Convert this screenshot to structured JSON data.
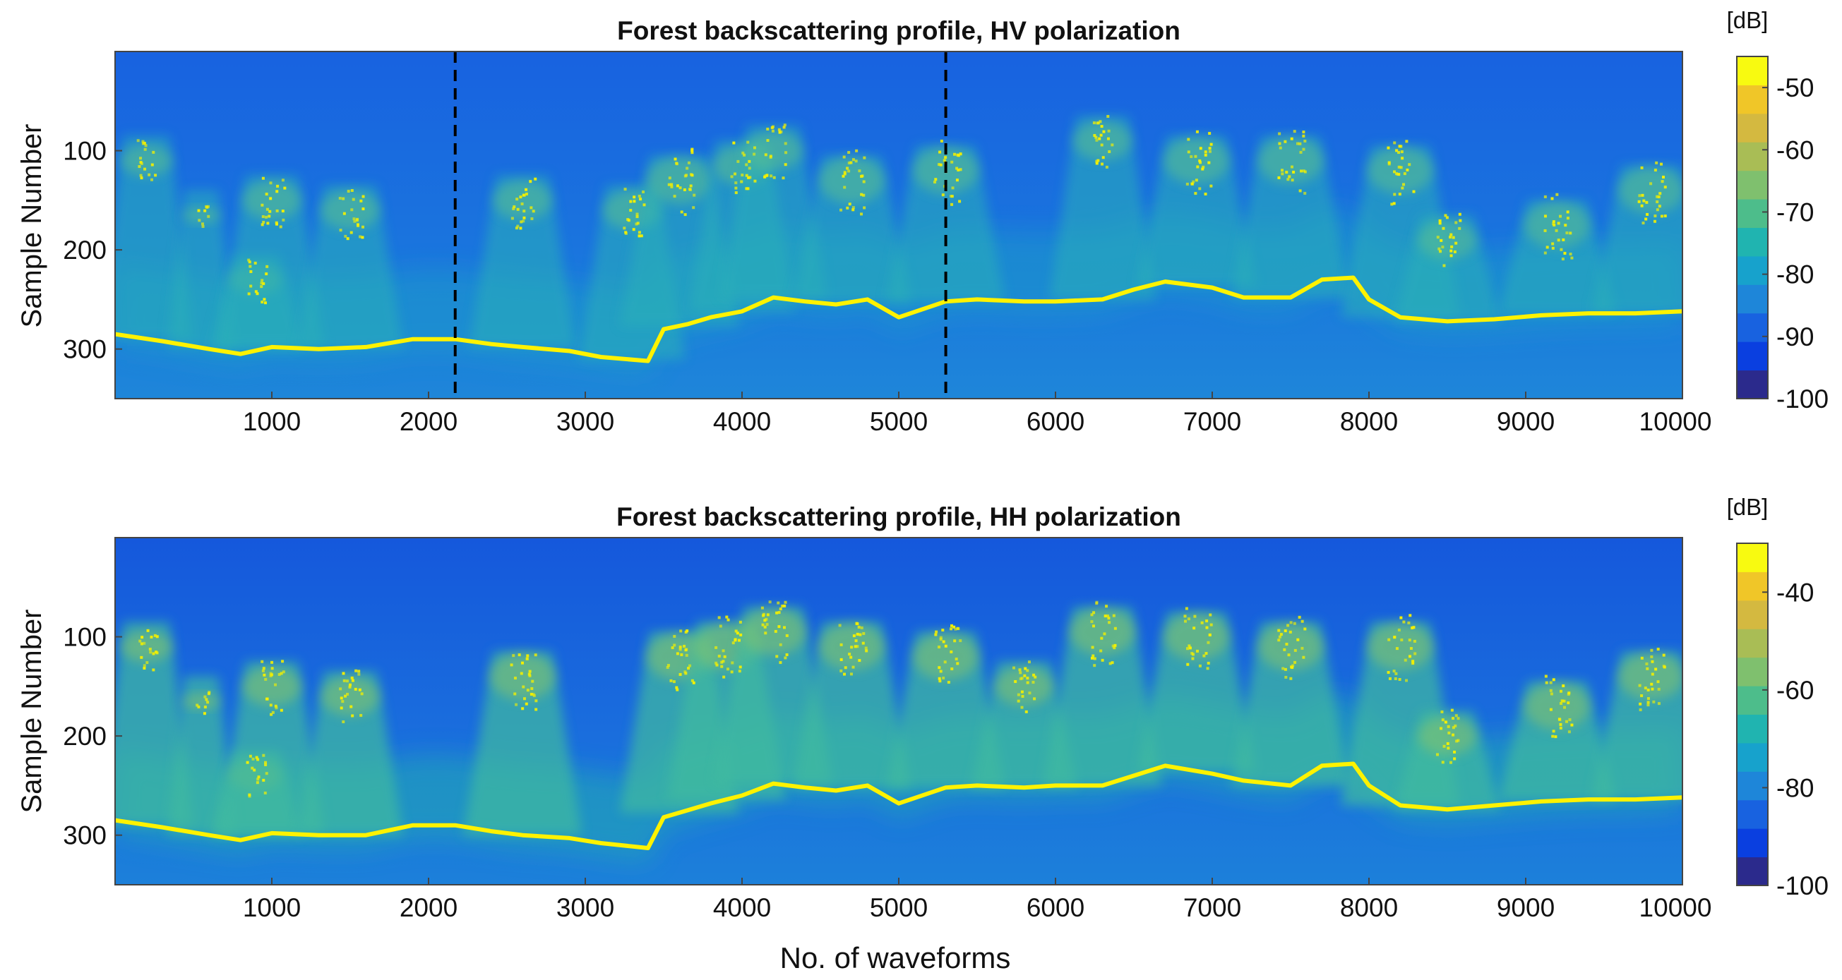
{
  "figure": {
    "xlabel": "No. of waveforms",
    "colors": {
      "frame": "#444444",
      "text": "#111111",
      "ground_line": "#fff200",
      "scatter_yellow": "#f4f000",
      "marker_line": "#000000"
    }
  },
  "chart_data": [
    {
      "type": "heatmap",
      "title": "Forest backscattering profile, HV polarization",
      "xlabel": "",
      "ylabel": "Sample Number",
      "xlim": [
        0,
        10000
      ],
      "ylim": [
        350,
        0
      ],
      "xticks": [
        1000,
        2000,
        3000,
        4000,
        5000,
        6000,
        7000,
        8000,
        9000,
        10000
      ],
      "xtick_labels": [
        "1000",
        "2000",
        "3000",
        "4000",
        "5000",
        "6000",
        "7000",
        "8000",
        "9000",
        "10000"
      ],
      "yticks": [
        100,
        200,
        300
      ],
      "ytick_labels": [
        "100",
        "200",
        "300"
      ],
      "vlines": [
        2170,
        5300
      ],
      "colorbar": {
        "label": "[dB]",
        "range": [
          -100,
          -45
        ],
        "ticks": [
          -50,
          -60,
          -70,
          -80,
          -90,
          -100
        ],
        "tick_labels": [
          "-50",
          "-60",
          "-70",
          "-80",
          "-90",
          "-100"
        ],
        "colors": [
          "#2b2a8c",
          "#0a3fe0",
          "#1862e0",
          "#1e86d9",
          "#17a2cc",
          "#20b4b0",
          "#4dbd8b",
          "#7fc06e",
          "#a9bd55",
          "#d4b940",
          "#f0c628",
          "#f8fa10"
        ]
      },
      "ground_profile": {
        "x": [
          0,
          300,
          600,
          800,
          1000,
          1300,
          1600,
          1900,
          2170,
          2400,
          2600,
          2900,
          3100,
          3400,
          3500,
          3650,
          3800,
          4000,
          4200,
          4400,
          4600,
          4800,
          5000,
          5300,
          5500,
          5800,
          6000,
          6300,
          6500,
          6700,
          7000,
          7200,
          7500,
          7700,
          7900,
          8000,
          8200,
          8500,
          8800,
          9100,
          9400,
          9700,
          10000
        ],
        "y": [
          285,
          292,
          300,
          305,
          298,
          300,
          298,
          290,
          290,
          295,
          298,
          302,
          308,
          312,
          280,
          275,
          268,
          262,
          248,
          252,
          255,
          250,
          268,
          252,
          250,
          252,
          252,
          250,
          240,
          232,
          238,
          248,
          248,
          230,
          228,
          250,
          268,
          272,
          270,
          266,
          264,
          264,
          262
        ]
      },
      "vegetation_clusters": [
        {
          "x": 200,
          "y": 110,
          "size": 40
        },
        {
          "x": 550,
          "y": 165,
          "size": 20
        },
        {
          "x": 900,
          "y": 230,
          "size": 40
        },
        {
          "x": 1000,
          "y": 150,
          "size": 50
        },
        {
          "x": 1500,
          "y": 160,
          "size": 50
        },
        {
          "x": 2600,
          "y": 150,
          "size": 50
        },
        {
          "x": 3300,
          "y": 160,
          "size": 50
        },
        {
          "x": 3600,
          "y": 130,
          "size": 60
        },
        {
          "x": 4000,
          "y": 115,
          "size": 50
        },
        {
          "x": 4200,
          "y": 100,
          "size": 50
        },
        {
          "x": 4700,
          "y": 130,
          "size": 60
        },
        {
          "x": 5300,
          "y": 120,
          "size": 60
        },
        {
          "x": 6300,
          "y": 90,
          "size": 50
        },
        {
          "x": 6900,
          "y": 110,
          "size": 60
        },
        {
          "x": 7500,
          "y": 110,
          "size": 60
        },
        {
          "x": 8200,
          "y": 120,
          "size": 60
        },
        {
          "x": 8500,
          "y": 190,
          "size": 50
        },
        {
          "x": 9200,
          "y": 175,
          "size": 60
        },
        {
          "x": 9800,
          "y": 140,
          "size": 60
        }
      ]
    },
    {
      "type": "heatmap",
      "title": "Forest backscattering profile, HH polarization",
      "xlabel": "No. of waveforms",
      "ylabel": "Sample Number",
      "xlim": [
        0,
        10000
      ],
      "ylim": [
        350,
        0
      ],
      "xticks": [
        1000,
        2000,
        3000,
        4000,
        5000,
        6000,
        7000,
        8000,
        9000,
        10000
      ],
      "xtick_labels": [
        "1000",
        "2000",
        "3000",
        "4000",
        "5000",
        "6000",
        "7000",
        "8000",
        "9000",
        "10000"
      ],
      "yticks": [
        100,
        200,
        300
      ],
      "ytick_labels": [
        "100",
        "200",
        "300"
      ],
      "vlines": [],
      "colorbar": {
        "label": "[dB]",
        "range": [
          -100,
          -30
        ],
        "ticks": [
          -40,
          -60,
          -80,
          -100
        ],
        "tick_labels": [
          "-40",
          "-60",
          "-80",
          "-100"
        ],
        "colors": [
          "#2b2a8c",
          "#0a3fe0",
          "#1862e0",
          "#1e86d9",
          "#17a2cc",
          "#20b4b0",
          "#4dbd8b",
          "#7fc06e",
          "#a9bd55",
          "#d4b940",
          "#f0c628",
          "#f8fa10"
        ]
      },
      "ground_profile": {
        "x": [
          0,
          300,
          600,
          800,
          1000,
          1300,
          1600,
          1900,
          2170,
          2400,
          2600,
          2900,
          3100,
          3400,
          3500,
          3650,
          3800,
          4000,
          4200,
          4400,
          4600,
          4800,
          5000,
          5300,
          5500,
          5800,
          6000,
          6300,
          6500,
          6700,
          7000,
          7200,
          7500,
          7700,
          7900,
          8000,
          8200,
          8500,
          8800,
          9100,
          9400,
          9700,
          10000
        ],
        "y": [
          285,
          292,
          300,
          305,
          298,
          300,
          300,
          290,
          290,
          296,
          300,
          303,
          308,
          313,
          282,
          275,
          268,
          260,
          248,
          252,
          255,
          250,
          268,
          252,
          250,
          252,
          250,
          250,
          240,
          230,
          238,
          245,
          250,
          230,
          228,
          250,
          270,
          274,
          270,
          266,
          264,
          264,
          262
        ]
      },
      "vegetation_clusters": [
        {
          "x": 200,
          "y": 110,
          "size": 40
        },
        {
          "x": 550,
          "y": 165,
          "size": 20
        },
        {
          "x": 900,
          "y": 240,
          "size": 40
        },
        {
          "x": 1000,
          "y": 150,
          "size": 50
        },
        {
          "x": 1500,
          "y": 160,
          "size": 50
        },
        {
          "x": 2600,
          "y": 140,
          "size": 60
        },
        {
          "x": 3600,
          "y": 120,
          "size": 60
        },
        {
          "x": 3900,
          "y": 110,
          "size": 60
        },
        {
          "x": 4200,
          "y": 95,
          "size": 60
        },
        {
          "x": 4700,
          "y": 110,
          "size": 60
        },
        {
          "x": 5300,
          "y": 120,
          "size": 60
        },
        {
          "x": 5800,
          "y": 150,
          "size": 50
        },
        {
          "x": 6300,
          "y": 95,
          "size": 60
        },
        {
          "x": 6900,
          "y": 100,
          "size": 60
        },
        {
          "x": 7500,
          "y": 110,
          "size": 60
        },
        {
          "x": 8200,
          "y": 110,
          "size": 60
        },
        {
          "x": 8500,
          "y": 200,
          "size": 50
        },
        {
          "x": 9200,
          "y": 170,
          "size": 60
        },
        {
          "x": 9800,
          "y": 140,
          "size": 60
        }
      ]
    }
  ]
}
